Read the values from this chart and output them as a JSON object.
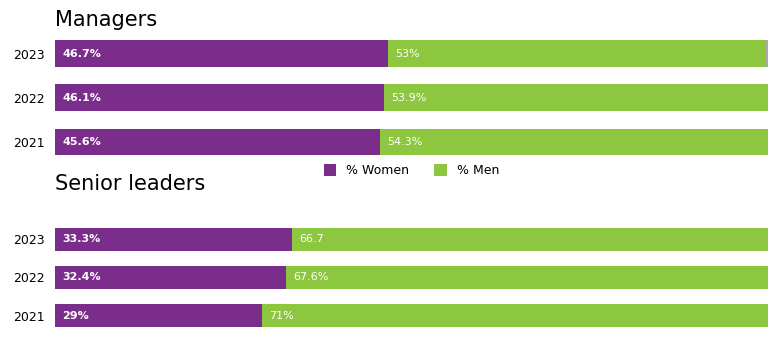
{
  "managers_title": "Managers",
  "senior_title": "Senior leaders",
  "managers": {
    "years": [
      "2023",
      "2022",
      "2021"
    ],
    "women": [
      46.7,
      46.1,
      45.6
    ],
    "men": [
      53.0,
      53.9,
      54.3
    ],
    "unknown": [
      0.3,
      0.0,
      0.1
    ],
    "women_labels": [
      "46.7%",
      "46.1%",
      "45.6%"
    ],
    "men_labels": [
      "53%",
      "53.9%",
      "54.3%"
    ]
  },
  "senior": {
    "years": [
      "2023",
      "2022",
      "2021"
    ],
    "women": [
      33.3,
      32.4,
      29.0
    ],
    "men": [
      66.7,
      67.6,
      71.0
    ],
    "women_labels": [
      "33.3%",
      "32.4%",
      "29%"
    ],
    "men_labels": [
      "66.7",
      "67.6%",
      "71%"
    ]
  },
  "color_women": "#7B2D8B",
  "color_men": "#8DC63F",
  "color_unknown": "#A9A9A9",
  "bg_color": "#FFFFFF",
  "bar_height": 0.6,
  "title_fontsize": 15,
  "label_fontsize": 8,
  "legend_fontsize": 9
}
